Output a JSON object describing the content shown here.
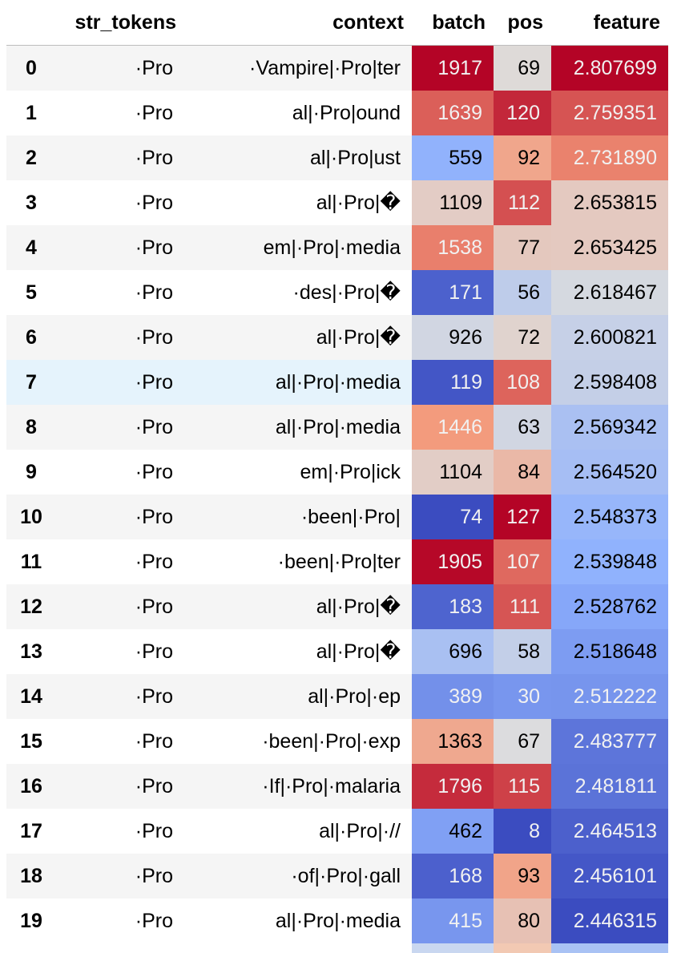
{
  "columns": [
    "",
    "str_tokens",
    "context",
    "batch",
    "pos",
    "feature"
  ],
  "hovered_row": 7,
  "rows": [
    {
      "index": "0",
      "str_tokens": "·Pro",
      "context": "·Vampire|·Pro|ter",
      "batch": "1917",
      "pos": "69",
      "feature": "2.807699"
    },
    {
      "index": "1",
      "str_tokens": "·Pro",
      "context": "al|·Pro|ound",
      "batch": "1639",
      "pos": "120",
      "feature": "2.759351"
    },
    {
      "index": "2",
      "str_tokens": "·Pro",
      "context": "al|·Pro|ust",
      "batch": "559",
      "pos": "92",
      "feature": "2.731890"
    },
    {
      "index": "3",
      "str_tokens": "·Pro",
      "context": "al|·Pro|�",
      "batch": "1109",
      "pos": "112",
      "feature": "2.653815"
    },
    {
      "index": "4",
      "str_tokens": "·Pro",
      "context": "em|·Pro|·media",
      "batch": "1538",
      "pos": "77",
      "feature": "2.653425"
    },
    {
      "index": "5",
      "str_tokens": "·Pro",
      "context": "·des|·Pro|�",
      "batch": "171",
      "pos": "56",
      "feature": "2.618467"
    },
    {
      "index": "6",
      "str_tokens": "·Pro",
      "context": "al|·Pro|�",
      "batch": "926",
      "pos": "72",
      "feature": "2.600821"
    },
    {
      "index": "7",
      "str_tokens": "·Pro",
      "context": "al|·Pro|·media",
      "batch": "119",
      "pos": "108",
      "feature": "2.598408"
    },
    {
      "index": "8",
      "str_tokens": "·Pro",
      "context": "al|·Pro|·media",
      "batch": "1446",
      "pos": "63",
      "feature": "2.569342"
    },
    {
      "index": "9",
      "str_tokens": "·Pro",
      "context": "em|·Pro|ick",
      "batch": "1104",
      "pos": "84",
      "feature": "2.564520"
    },
    {
      "index": "10",
      "str_tokens": "·Pro",
      "context": "·been|·Pro|",
      "batch": "74",
      "pos": "127",
      "feature": "2.548373"
    },
    {
      "index": "11",
      "str_tokens": "·Pro",
      "context": "·been|·Pro|ter",
      "batch": "1905",
      "pos": "107",
      "feature": "2.539848"
    },
    {
      "index": "12",
      "str_tokens": "·Pro",
      "context": "al|·Pro|�",
      "batch": "183",
      "pos": "111",
      "feature": "2.528762"
    },
    {
      "index": "13",
      "str_tokens": "·Pro",
      "context": "al|·Pro|�",
      "batch": "696",
      "pos": "58",
      "feature": "2.518648"
    },
    {
      "index": "14",
      "str_tokens": "·Pro",
      "context": "al|·Pro|·ep",
      "batch": "389",
      "pos": "30",
      "feature": "2.512222"
    },
    {
      "index": "15",
      "str_tokens": "·Pro",
      "context": "·been|·Pro|·exp",
      "batch": "1363",
      "pos": "67",
      "feature": "2.483777"
    },
    {
      "index": "16",
      "str_tokens": "·Pro",
      "context": "·If|·Pro|·malaria",
      "batch": "1796",
      "pos": "115",
      "feature": "2.481811"
    },
    {
      "index": "17",
      "str_tokens": "·Pro",
      "context": "al|·Pro|·//",
      "batch": "462",
      "pos": "8",
      "feature": "2.464513"
    },
    {
      "index": "18",
      "str_tokens": "·Pro",
      "context": "·of|·Pro|·gall",
      "batch": "168",
      "pos": "93",
      "feature": "2.456101"
    },
    {
      "index": "19",
      "str_tokens": "·Pro",
      "context": "al|·Pro|·media",
      "batch": "415",
      "pos": "80",
      "feature": "2.446315"
    }
  ],
  "footer_strip_colors": {
    "batch": "#c9d7f0",
    "pos": "#f2c9b3",
    "feature": "#a9c2f4"
  }
}
